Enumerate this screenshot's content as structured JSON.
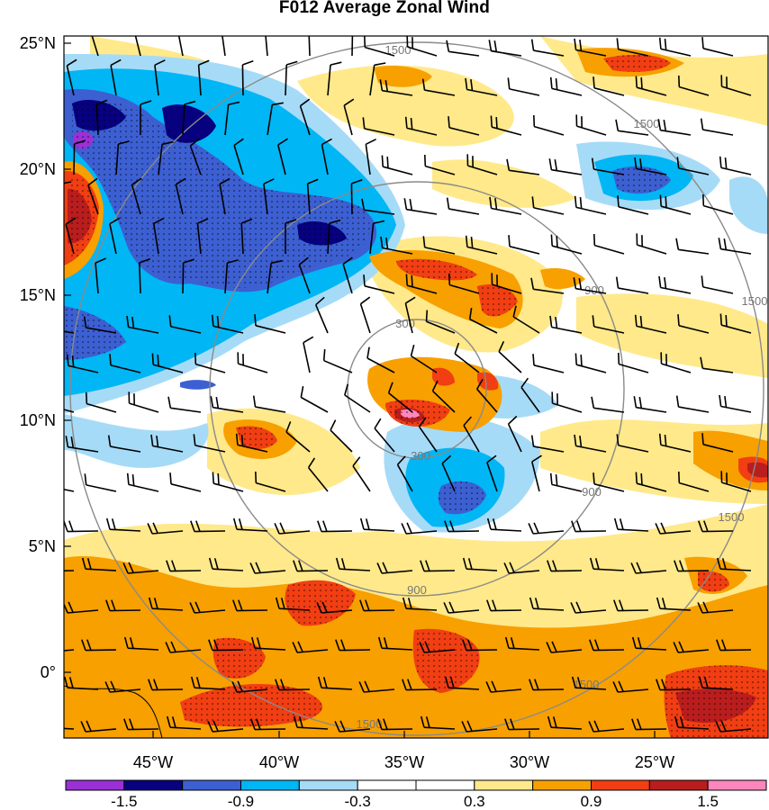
{
  "title": "F012 Average Zonal Wind",
  "lat_ticks": [
    "25°N",
    "20°N",
    "15°N",
    "10°N",
    "5°N",
    "0°"
  ],
  "lon_ticks": [
    "45°W",
    "40°W",
    "35°W",
    "30°W",
    "25°W"
  ],
  "colorbar": {
    "colors": [
      "#9b30d6",
      "#07007f",
      "#3c5fd2",
      "#00b6f5",
      "#a6dbf7",
      "#ffffff",
      "#ffffff",
      "#ffe98a",
      "#f7a000",
      "#f13e12",
      "#b91d1d",
      "#ff86bd"
    ],
    "labels": [
      "-1.5",
      "-0.9",
      "-0.3",
      "0.3",
      "0.9",
      "1.5"
    ]
  },
  "range_rings": {
    "labels": [
      "300",
      "300",
      "900",
      "900",
      "900",
      "1500",
      "1500",
      "1500",
      "1500",
      "1500",
      "1500"
    ]
  }
}
